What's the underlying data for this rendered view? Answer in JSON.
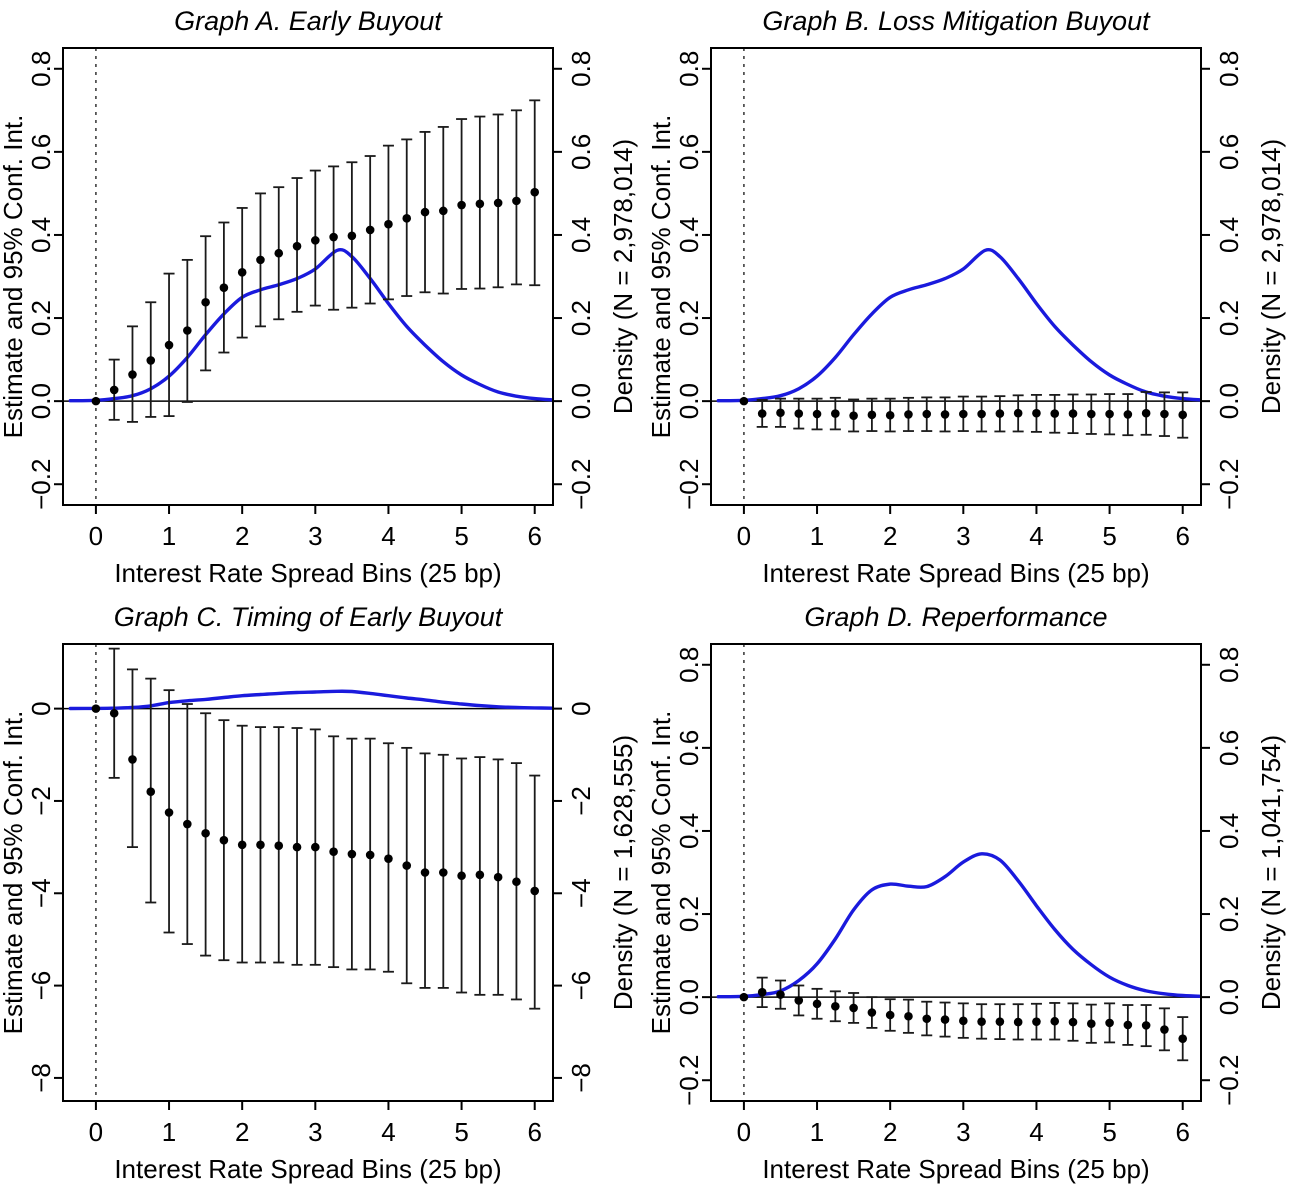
{
  "figure": {
    "x_label": "Interest Rate Spread Bins (25 bp)",
    "y_left_label": "Estimate and 95% Conf. Int.",
    "x_ticks": [
      0,
      1,
      2,
      3,
      4,
      5,
      6
    ],
    "xlim": [
      -0.45,
      6.25
    ],
    "colors": {
      "density_line": "#1a1add",
      "points": "#000000",
      "error_bars": "#1a1a1a",
      "axis": "#000000",
      "reference_line_dashed": "#333333",
      "background": "#ffffff"
    }
  },
  "chart_data": [
    {
      "id": "A",
      "type": "scatter",
      "title": "Graph A. Early Buyout",
      "right_label": "Density (N = 2,978,014)",
      "ylim": [
        -0.25,
        0.85
      ],
      "y_ticks": [
        {
          "v": 0.8,
          "label": "0.8"
        },
        {
          "v": 0.6,
          "label": "0.6"
        },
        {
          "v": 0.4,
          "label": "0.4"
        },
        {
          "v": 0.2,
          "label": "0.2"
        },
        {
          "v": 0.0,
          "label": "0.0"
        },
        {
          "v": -0.2,
          "label": "−0.2"
        }
      ],
      "bins": [
        0,
        0.25,
        0.5,
        0.75,
        1,
        1.25,
        1.5,
        1.75,
        2,
        2.25,
        2.5,
        2.75,
        3,
        3.25,
        3.5,
        3.75,
        4,
        4.25,
        4.5,
        4.75,
        5,
        5.25,
        5.5,
        5.75,
        6
      ],
      "estimate": [
        0,
        0.027,
        0.064,
        0.098,
        0.135,
        0.17,
        0.238,
        0.273,
        0.31,
        0.34,
        0.356,
        0.373,
        0.387,
        0.395,
        0.398,
        0.412,
        0.426,
        0.44,
        0.455,
        0.458,
        0.472,
        0.475,
        0.477,
        0.482,
        0.503
      ],
      "ci_low": [
        0,
        -0.045,
        -0.05,
        -0.038,
        -0.036,
        -0.002,
        0.074,
        0.117,
        0.153,
        0.18,
        0.197,
        0.215,
        0.23,
        0.22,
        0.225,
        0.235,
        0.245,
        0.253,
        0.262,
        0.259,
        0.27,
        0.271,
        0.274,
        0.281,
        0.279
      ],
      "ci_high": [
        0,
        0.1,
        0.18,
        0.238,
        0.307,
        0.34,
        0.397,
        0.43,
        0.465,
        0.5,
        0.515,
        0.537,
        0.555,
        0.565,
        0.575,
        0.59,
        0.615,
        0.63,
        0.648,
        0.66,
        0.679,
        0.685,
        0.69,
        0.7,
        0.724
      ],
      "density": {
        "x": [
          -0.35,
          0,
          0.25,
          0.5,
          0.75,
          1,
          1.25,
          1.5,
          1.75,
          2,
          2.25,
          2.5,
          2.75,
          3,
          3.3,
          3.5,
          3.75,
          4,
          4.25,
          4.5,
          4.75,
          5,
          5.25,
          5.5,
          5.75,
          6,
          6.25
        ],
        "y": [
          0.001,
          0.002,
          0.006,
          0.013,
          0.03,
          0.06,
          0.105,
          0.16,
          0.21,
          0.25,
          0.268,
          0.28,
          0.295,
          0.318,
          0.363,
          0.348,
          0.295,
          0.235,
          0.18,
          0.135,
          0.095,
          0.063,
          0.04,
          0.022,
          0.012,
          0.006,
          0.003
        ]
      }
    },
    {
      "id": "B",
      "type": "scatter",
      "title": "Graph B. Loss Mitigation Buyout",
      "right_label": "Density (N = 2,978,014)",
      "ylim": [
        -0.25,
        0.85
      ],
      "y_ticks": [
        {
          "v": 0.8,
          "label": "0.8"
        },
        {
          "v": 0.6,
          "label": "0.6"
        },
        {
          "v": 0.4,
          "label": "0.4"
        },
        {
          "v": 0.2,
          "label": "0.2"
        },
        {
          "v": 0.0,
          "label": "0.0"
        },
        {
          "v": -0.2,
          "label": "−0.2"
        }
      ],
      "bins": [
        0,
        0.25,
        0.5,
        0.75,
        1,
        1.25,
        1.5,
        1.75,
        2,
        2.25,
        2.5,
        2.75,
        3,
        3.25,
        3.5,
        3.75,
        4,
        4.25,
        4.5,
        4.75,
        5,
        5.25,
        5.5,
        5.75,
        6
      ],
      "estimate": [
        0,
        -0.03,
        -0.028,
        -0.03,
        -0.031,
        -0.03,
        -0.035,
        -0.033,
        -0.034,
        -0.032,
        -0.031,
        -0.032,
        -0.031,
        -0.031,
        -0.03,
        -0.029,
        -0.029,
        -0.03,
        -0.03,
        -0.031,
        -0.031,
        -0.032,
        -0.029,
        -0.031,
        -0.033
      ],
      "ci_low": [
        0,
        -0.062,
        -0.062,
        -0.066,
        -0.068,
        -0.068,
        -0.073,
        -0.072,
        -0.073,
        -0.072,
        -0.072,
        -0.073,
        -0.072,
        -0.073,
        -0.073,
        -0.073,
        -0.074,
        -0.076,
        -0.077,
        -0.079,
        -0.08,
        -0.082,
        -0.081,
        -0.084,
        -0.088
      ],
      "ci_high": [
        0,
        0.003,
        0.006,
        0.006,
        0.006,
        0.008,
        0.004,
        0.006,
        0.006,
        0.008,
        0.009,
        0.009,
        0.011,
        0.011,
        0.012,
        0.014,
        0.015,
        0.015,
        0.016,
        0.016,
        0.017,
        0.017,
        0.022,
        0.021,
        0.021
      ],
      "density": {
        "x": [
          -0.35,
          0,
          0.25,
          0.5,
          0.75,
          1,
          1.25,
          1.5,
          1.75,
          2,
          2.25,
          2.5,
          2.75,
          3,
          3.3,
          3.5,
          3.75,
          4,
          4.25,
          4.5,
          4.75,
          5,
          5.25,
          5.5,
          5.75,
          6,
          6.25
        ],
        "y": [
          0.001,
          0.002,
          0.006,
          0.013,
          0.03,
          0.06,
          0.105,
          0.16,
          0.21,
          0.25,
          0.268,
          0.28,
          0.295,
          0.318,
          0.363,
          0.348,
          0.295,
          0.235,
          0.18,
          0.135,
          0.095,
          0.063,
          0.04,
          0.022,
          0.012,
          0.006,
          0.003
        ]
      }
    },
    {
      "id": "C",
      "type": "scatter",
      "title": "Graph C. Timing of Early Buyout",
      "right_label": "Density (N = 1,628,555)",
      "ylim": [
        -8.5,
        1.4
      ],
      "y_ticks": [
        {
          "v": 0,
          "label": "0"
        },
        {
          "v": -2,
          "label": "−2"
        },
        {
          "v": -4,
          "label": "−4"
        },
        {
          "v": -6,
          "label": "−6"
        },
        {
          "v": -8,
          "label": "−8"
        }
      ],
      "bins": [
        0,
        0.25,
        0.5,
        0.75,
        1,
        1.25,
        1.5,
        1.75,
        2,
        2.25,
        2.5,
        2.75,
        3,
        3.25,
        3.5,
        3.75,
        4,
        4.25,
        4.5,
        4.75,
        5,
        5.25,
        5.5,
        5.75,
        6
      ],
      "estimate": [
        0,
        -0.1,
        -1.1,
        -1.8,
        -2.25,
        -2.5,
        -2.7,
        -2.85,
        -2.95,
        -2.95,
        -2.97,
        -3.0,
        -3.0,
        -3.1,
        -3.15,
        -3.17,
        -3.25,
        -3.4,
        -3.55,
        -3.55,
        -3.62,
        -3.6,
        -3.65,
        -3.75,
        -3.95
      ],
      "ci_low": [
        0,
        -1.5,
        -3.0,
        -4.2,
        -4.85,
        -5.1,
        -5.35,
        -5.45,
        -5.5,
        -5.5,
        -5.5,
        -5.55,
        -5.55,
        -5.6,
        -5.65,
        -5.65,
        -5.7,
        -5.95,
        -6.05,
        -6.05,
        -6.15,
        -6.2,
        -6.2,
        -6.3,
        -6.5
      ],
      "ci_high": [
        0,
        1.3,
        0.85,
        0.65,
        0.4,
        0.1,
        -0.1,
        -0.25,
        -0.37,
        -0.4,
        -0.4,
        -0.42,
        -0.45,
        -0.6,
        -0.65,
        -0.65,
        -0.75,
        -0.85,
        -0.97,
        -1.0,
        -1.08,
        -1.05,
        -1.1,
        -1.18,
        -1.45
      ],
      "density": {
        "x": [
          -0.35,
          0,
          0.25,
          0.5,
          0.75,
          1,
          1.25,
          1.5,
          1.75,
          2,
          2.25,
          2.5,
          2.75,
          3,
          3.3,
          3.5,
          3.75,
          4,
          4.25,
          4.5,
          4.75,
          5,
          5.25,
          5.5,
          5.75,
          6,
          6.25
        ],
        "y": [
          0.002,
          0.004,
          0.01,
          0.025,
          0.06,
          0.13,
          0.17,
          0.2,
          0.24,
          0.28,
          0.305,
          0.33,
          0.35,
          0.36,
          0.375,
          0.37,
          0.33,
          0.28,
          0.23,
          0.19,
          0.14,
          0.1,
          0.065,
          0.04,
          0.025,
          0.015,
          0.01
        ]
      }
    },
    {
      "id": "D",
      "type": "scatter",
      "title": "Graph D. Reperformance",
      "right_label": "Density (N = 1,041,754)",
      "ylim": [
        -0.25,
        0.85
      ],
      "y_ticks": [
        {
          "v": 0.8,
          "label": "0.8"
        },
        {
          "v": 0.6,
          "label": "0.6"
        },
        {
          "v": 0.4,
          "label": "0.4"
        },
        {
          "v": 0.2,
          "label": "0.2"
        },
        {
          "v": 0.0,
          "label": "0.0"
        },
        {
          "v": -0.2,
          "label": "−0.2"
        }
      ],
      "bins": [
        0,
        0.25,
        0.5,
        0.75,
        1,
        1.25,
        1.5,
        1.75,
        2,
        2.25,
        2.5,
        2.75,
        3,
        3.25,
        3.5,
        3.75,
        4,
        4.25,
        4.5,
        4.75,
        5,
        5.25,
        5.5,
        5.75,
        6
      ],
      "estimate": [
        0,
        0.012,
        0.006,
        -0.008,
        -0.016,
        -0.022,
        -0.026,
        -0.037,
        -0.043,
        -0.046,
        -0.052,
        -0.054,
        -0.057,
        -0.059,
        -0.059,
        -0.06,
        -0.059,
        -0.058,
        -0.06,
        -0.064,
        -0.062,
        -0.067,
        -0.068,
        -0.078,
        -0.1
      ],
      "ci_low": [
        0,
        -0.024,
        -0.028,
        -0.044,
        -0.052,
        -0.058,
        -0.062,
        -0.074,
        -0.081,
        -0.086,
        -0.092,
        -0.095,
        -0.098,
        -0.1,
        -0.101,
        -0.102,
        -0.102,
        -0.102,
        -0.105,
        -0.11,
        -0.109,
        -0.115,
        -0.118,
        -0.128,
        -0.152
      ],
      "ci_high": [
        0,
        0.047,
        0.04,
        0.028,
        0.02,
        0.014,
        0.01,
        0.0,
        -0.005,
        -0.006,
        -0.011,
        -0.013,
        -0.015,
        -0.017,
        -0.017,
        -0.017,
        -0.016,
        -0.014,
        -0.015,
        -0.018,
        -0.015,
        -0.019,
        -0.019,
        -0.027,
        -0.048
      ],
      "density": {
        "x": [
          -0.35,
          0,
          0.25,
          0.5,
          0.75,
          1,
          1.25,
          1.5,
          1.75,
          2,
          2.25,
          2.5,
          2.75,
          3,
          3.25,
          3.5,
          3.75,
          4,
          4.25,
          4.5,
          4.75,
          5,
          5.25,
          5.5,
          5.75,
          6,
          6.25
        ],
        "y": [
          0.001,
          0.002,
          0.006,
          0.015,
          0.04,
          0.08,
          0.14,
          0.21,
          0.258,
          0.272,
          0.267,
          0.266,
          0.29,
          0.325,
          0.345,
          0.33,
          0.28,
          0.22,
          0.163,
          0.115,
          0.078,
          0.048,
          0.028,
          0.015,
          0.008,
          0.004,
          0.002
        ]
      }
    }
  ]
}
